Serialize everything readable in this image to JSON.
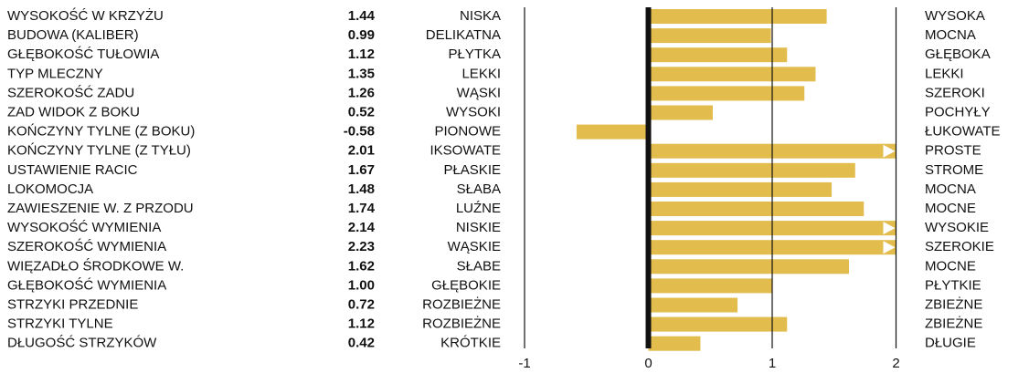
{
  "chart_data": {
    "type": "bar",
    "orientation": "horizontal",
    "categories": [
      "WYSOKOŚĆ W KRZYŻU",
      "BUDOWA (KALIBER)",
      "GŁĘBOKOŚĆ TUŁOWIA",
      "TYP MLECZNY",
      "SZEROKOŚĆ ZADU",
      "ZAD WIDOK Z BOKU",
      "KOŃCZYNY TYLNE (Z BOKU)",
      "KOŃCZYNY TYLNE (Z TYŁU)",
      "USTAWIENIE RACIC",
      "LOKOMOCJA",
      "ZAWIESZENIE W. Z PRZODU",
      "WYSOKOŚĆ WYMIENIA",
      "SZEROKOŚĆ WYMIENIA",
      "WIĘZADŁO ŚRODKOWE W.",
      "GŁĘBOKOŚĆ WYMIENIA",
      "STRZYKI PRZEDNIE",
      "STRZYKI TYLNE",
      "DŁUGOŚĆ STRZYKÓW"
    ],
    "values": [
      1.44,
      0.99,
      1.12,
      1.35,
      1.26,
      0.52,
      -0.58,
      2.01,
      1.67,
      1.48,
      1.74,
      2.14,
      2.23,
      1.62,
      1.0,
      0.72,
      1.12,
      0.42
    ],
    "value_labels": [
      "1.44",
      "0.99",
      "1.12",
      "1.35",
      "1.26",
      "0.52",
      "-0.58",
      "2.01",
      "1.67",
      "1.48",
      "1.74",
      "2.14",
      "2.23",
      "1.62",
      "1.00",
      "0.72",
      "1.12",
      "0.42"
    ],
    "low_labels": [
      "NISKA",
      "DELIKATNA",
      "PŁYTKA",
      "LEKKI",
      "WĄSKI",
      "WYSOKI",
      "PIONOWE",
      "IKSOWATE",
      "PŁASKIE",
      "SŁABA",
      "LUŹNE",
      "NISKIE",
      "WĄSKIE",
      "SŁABE",
      "GŁĘBOKIE",
      "ROZBIEŻNE",
      "ROZBIEŻNE",
      "KRÓTKIE"
    ],
    "high_labels": [
      "WYSOKA",
      "MOCNA",
      "GŁĘBOKA",
      "LEKKI",
      "SZEROKI",
      "POCHYŁY",
      "ŁUKOWATE",
      "PROSTE",
      "STROME",
      "MOCNA",
      "MOCNE",
      "WYSOKIE",
      "SZEROKIE",
      "MOCNE",
      "PŁYTKIE",
      "ZBIEŻNE",
      "ZBIEŻNE",
      "DŁUGIE"
    ],
    "xlim": [
      -1,
      2
    ],
    "xticks": [
      -1,
      0,
      1,
      2
    ],
    "color": "#e2bc4d"
  }
}
